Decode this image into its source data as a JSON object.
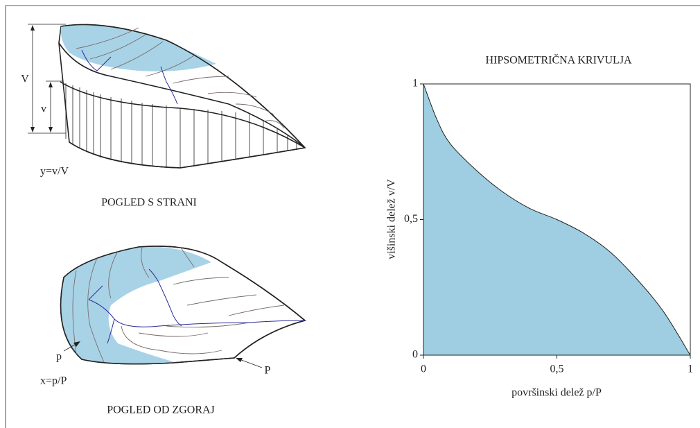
{
  "diagram": {
    "side_view": {
      "big_height": "V",
      "small_height": "v",
      "formula": "y=v/V",
      "caption": "POGLED S STRANI"
    },
    "top_view": {
      "small_area": "p",
      "big_area": "P",
      "formula": "x=p/P",
      "caption": "POGLED OD ZGORAJ"
    }
  },
  "chart_data": {
    "type": "area",
    "title": "HIPSOMETRIČNA KRIVULJA",
    "x_label": "površinski delež   p/P",
    "y_label": "višinski delež  v/V",
    "x": [
      0,
      0.05,
      0.1,
      0.2,
      0.3,
      0.4,
      0.5,
      0.6,
      0.7,
      0.8,
      0.9,
      1
    ],
    "series": [
      {
        "color": "#9fcde2",
        "values": [
          1,
          0.87,
          0.78,
          0.68,
          0.6,
          0.54,
          0.5,
          0.45,
          0.38,
          0.28,
          0.16,
          0
        ]
      }
    ],
    "xlim": [
      0,
      1
    ],
    "ylim": [
      0,
      1
    ],
    "xticks": [
      0,
      {
        "value": 0.5,
        "label": "0,5"
      },
      1
    ],
    "yticks": [
      0,
      {
        "value": 0.5,
        "label": "0,5"
      },
      1
    ]
  }
}
